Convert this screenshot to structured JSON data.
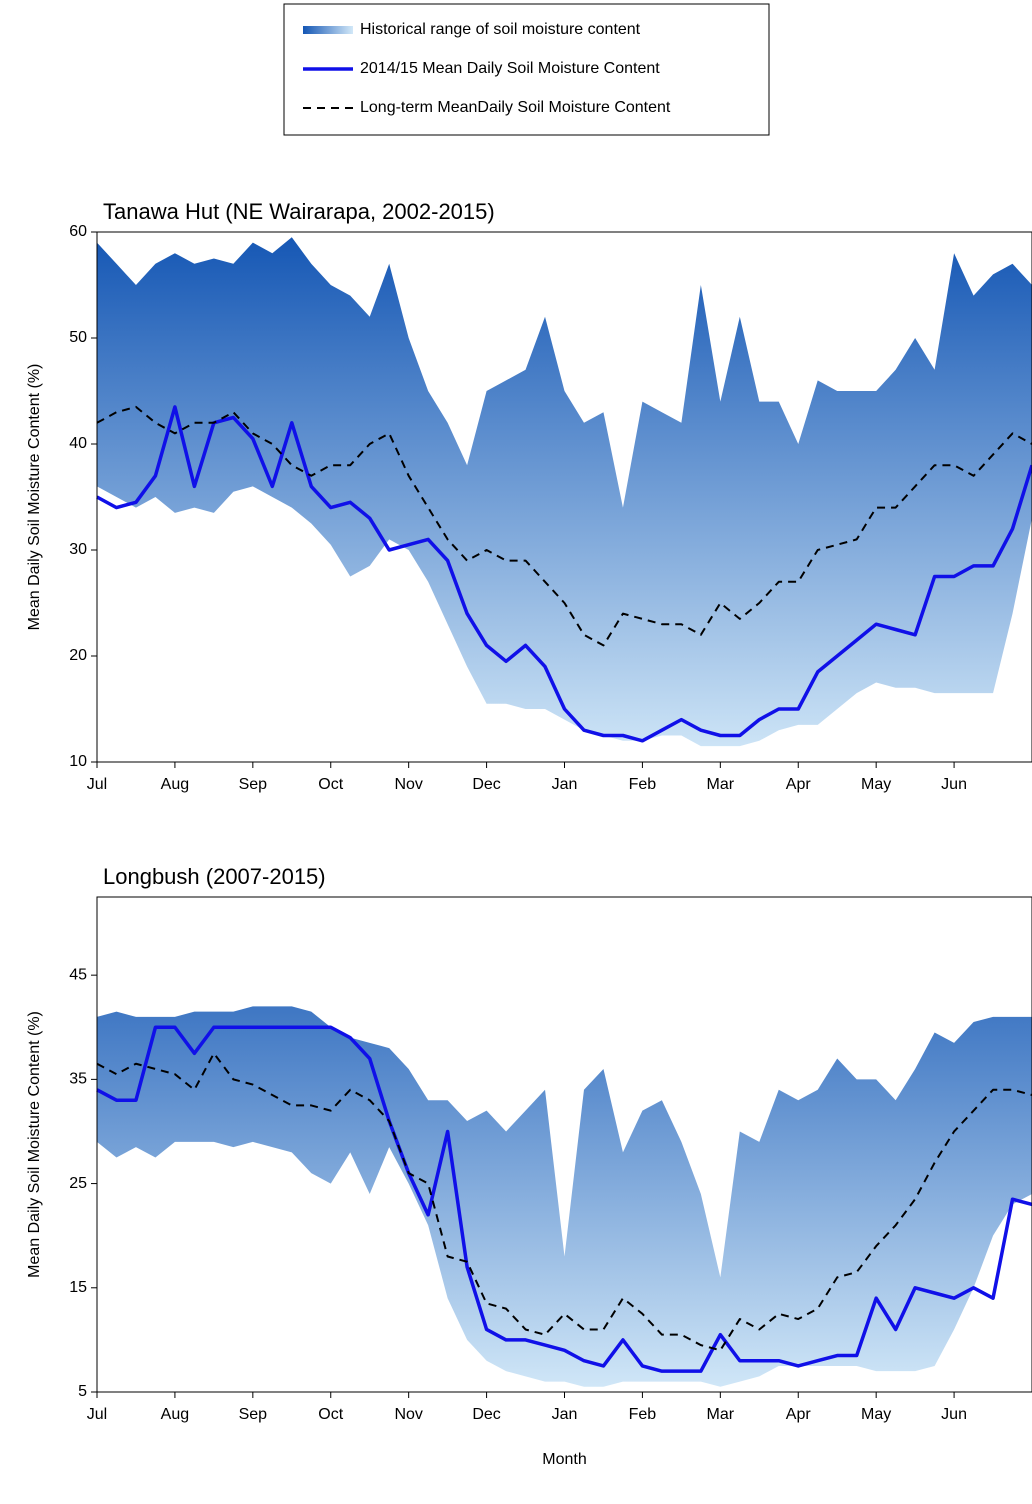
{
  "chart_data": [
    {
      "type": "range-line",
      "title": "Tanawa Hut (NE Wairarapa, 2002-2015)",
      "y_label": "Mean Daily Soil Moisture Content (%)",
      "legend": "top-center",
      "xlim": [
        0,
        12
      ],
      "ylim": [
        10,
        60
      ],
      "yticks": [
        10,
        20,
        30,
        40,
        50,
        60
      ],
      "xticks": [
        {
          "value": 0,
          "label": "Jul"
        },
        {
          "value": 1,
          "label": "Aug"
        },
        {
          "value": 2,
          "label": "Sep"
        },
        {
          "value": 3,
          "label": "Oct"
        },
        {
          "value": 4,
          "label": "Nov"
        },
        {
          "value": 5,
          "label": "Dec"
        },
        {
          "value": 6,
          "label": "Jan"
        },
        {
          "value": 7,
          "label": "Feb"
        },
        {
          "value": 8,
          "label": "Mar"
        },
        {
          "value": 9,
          "label": "Apr"
        },
        {
          "value": 10,
          "label": "May"
        },
        {
          "value": 11,
          "label": "Jun"
        }
      ],
      "x": [
        0,
        0.25,
        0.5,
        0.75,
        1,
        1.25,
        1.5,
        1.75,
        2,
        2.25,
        2.5,
        2.75,
        3,
        3.25,
        3.5,
        3.75,
        4,
        4.25,
        4.5,
        4.75,
        5,
        5.25,
        5.5,
        5.75,
        6,
        6.25,
        6.5,
        6.75,
        7,
        7.25,
        7.5,
        7.75,
        8,
        8.25,
        8.5,
        8.75,
        9,
        9.25,
        9.5,
        9.75,
        10,
        10.25,
        10.5,
        10.75,
        11,
        11.25,
        11.5,
        11.75,
        12
      ],
      "series": [
        {
          "name": "Historical range of soil moisture content",
          "style": "band",
          "colors": [
            "#1456b4",
            "#d2e8f8"
          ],
          "low": [
            36,
            35,
            34,
            35,
            33.5,
            34,
            33.5,
            35.5,
            36,
            35,
            34,
            32.5,
            30.5,
            27.5,
            28.5,
            31,
            30,
            27,
            23,
            19,
            15.5,
            15.5,
            15,
            15,
            14,
            13,
            12.5,
            12,
            12,
            12.5,
            12.5,
            11.5,
            11.5,
            11.5,
            12,
            13,
            13.5,
            13.5,
            15,
            16.5,
            17.5,
            17,
            17,
            16.5,
            16.5,
            16.5,
            16.5,
            24,
            33
          ],
          "high": [
            59,
            57,
            55,
            57,
            58,
            57,
            57.5,
            57,
            59,
            58,
            59.5,
            57,
            55,
            54,
            52,
            57,
            50,
            45,
            42,
            38,
            45,
            46,
            47,
            52,
            45,
            42,
            43,
            34,
            44,
            43,
            42,
            55,
            44,
            52,
            44,
            44,
            40,
            46,
            45,
            45,
            45,
            47,
            50,
            47,
            58,
            54,
            56,
            57,
            55
          ]
        },
        {
          "name": "2014/15 Mean Daily Soil Moisture Content",
          "style": "solid",
          "color": "#1010e8",
          "values": [
            35,
            34,
            34.5,
            37,
            43.5,
            36,
            42,
            42.5,
            40.5,
            36,
            42,
            36,
            34,
            34.5,
            33,
            30,
            30.5,
            31,
            29,
            24,
            21,
            19.5,
            21,
            19,
            15,
            13,
            12.5,
            12.5,
            12,
            13,
            14,
            13,
            12.5,
            12.5,
            14,
            15,
            15,
            18.5,
            20,
            21.5,
            23,
            22.5,
            22,
            27.5,
            27.5,
            28.5,
            28.5,
            32,
            38
          ]
        },
        {
          "name": "Long-term MeanDaily Soil Moisture Content",
          "style": "dashed",
          "color": "#000000",
          "values": [
            42,
            43,
            43.5,
            42,
            41,
            42,
            42,
            43,
            41,
            40,
            38,
            37,
            38,
            38,
            40,
            41,
            37,
            34,
            31,
            29,
            30,
            29,
            29,
            27,
            25,
            22,
            21,
            24,
            23.5,
            23,
            23,
            22,
            25,
            23.5,
            25,
            27,
            27,
            30,
            30.5,
            31,
            34,
            34,
            36,
            38,
            38,
            37,
            39,
            41,
            40
          ]
        }
      ]
    },
    {
      "type": "range-line",
      "title": "Longbush (2007-2015)",
      "y_label": "Mean Daily Soil Moisture Content (%)",
      "x_label": "Month",
      "xlim": [
        0,
        12
      ],
      "ylim": [
        5,
        52.5
      ],
      "yticks": [
        5,
        15,
        25,
        35,
        45
      ],
      "xticks": [
        {
          "value": 0,
          "label": "Jul"
        },
        {
          "value": 1,
          "label": "Aug"
        },
        {
          "value": 2,
          "label": "Sep"
        },
        {
          "value": 3,
          "label": "Oct"
        },
        {
          "value": 4,
          "label": "Nov"
        },
        {
          "value": 5,
          "label": "Dec"
        },
        {
          "value": 6,
          "label": "Jan"
        },
        {
          "value": 7,
          "label": "Feb"
        },
        {
          "value": 8,
          "label": "Mar"
        },
        {
          "value": 9,
          "label": "Apr"
        },
        {
          "value": 10,
          "label": "May"
        },
        {
          "value": 11,
          "label": "Jun"
        }
      ],
      "x": [
        0,
        0.25,
        0.5,
        0.75,
        1,
        1.25,
        1.5,
        1.75,
        2,
        2.25,
        2.5,
        2.75,
        3,
        3.25,
        3.5,
        3.75,
        4,
        4.25,
        4.5,
        4.75,
        5,
        5.25,
        5.5,
        5.75,
        6,
        6.25,
        6.5,
        6.75,
        7,
        7.25,
        7.5,
        7.75,
        8,
        8.25,
        8.5,
        8.75,
        9,
        9.25,
        9.5,
        9.75,
        10,
        10.25,
        10.5,
        10.75,
        11,
        11.25,
        11.5,
        11.75,
        12
      ],
      "series": [
        {
          "style": "band",
          "colors": [
            "#1456b4",
            "#d2e8f8"
          ],
          "low": [
            29,
            27.5,
            28.5,
            27.5,
            29,
            29,
            29,
            28.5,
            29,
            28.5,
            28,
            26,
            25,
            28,
            24,
            28.5,
            25,
            21,
            14,
            10,
            8,
            7,
            6.5,
            6,
            6,
            5.5,
            5.5,
            6,
            6,
            6,
            6,
            6,
            5.5,
            6,
            6.5,
            7.5,
            7.5,
            7.5,
            7.5,
            7.5,
            7,
            7,
            7,
            7.5,
            11,
            15,
            20,
            23,
            24
          ],
          "high": [
            41,
            41.5,
            41,
            41,
            41,
            41.5,
            41.5,
            41.5,
            42,
            42,
            42,
            41.5,
            40,
            39,
            38.5,
            38,
            36,
            33,
            33,
            31,
            32,
            30,
            32,
            34,
            18,
            34,
            36,
            28,
            32,
            33,
            29,
            24,
            16,
            30,
            29,
            34,
            33,
            34,
            37,
            35,
            35,
            33,
            36,
            39.5,
            38.5,
            40.5,
            41,
            41,
            41
          ]
        },
        {
          "style": "solid",
          "color": "#1010e8",
          "values": [
            34,
            33,
            33,
            40,
            40,
            37.5,
            40,
            40,
            40,
            40,
            40,
            40,
            40,
            39,
            37,
            31,
            26,
            22,
            30,
            17,
            11,
            10,
            10,
            9.5,
            9,
            8,
            7.5,
            10,
            7.5,
            7,
            7,
            7,
            10.5,
            8,
            8,
            8,
            7.5,
            8,
            8.5,
            8.5,
            14,
            11,
            15,
            14.5,
            14,
            15,
            14,
            23.5,
            23
          ]
        },
        {
          "style": "dashed",
          "color": "#000000",
          "values": [
            36.5,
            35.5,
            36.5,
            36,
            35.5,
            34,
            37.5,
            35,
            34.5,
            33.5,
            32.5,
            32.5,
            32,
            34,
            33,
            31,
            26,
            25,
            18,
            17.5,
            13.5,
            13,
            11,
            10.5,
            12.5,
            11,
            11,
            14,
            12.5,
            10.5,
            10.5,
            9.5,
            9,
            12,
            11,
            12.5,
            12,
            13,
            16,
            16.5,
            19,
            21,
            23.5,
            27,
            30,
            32,
            34,
            34,
            33.5
          ]
        }
      ]
    }
  ]
}
